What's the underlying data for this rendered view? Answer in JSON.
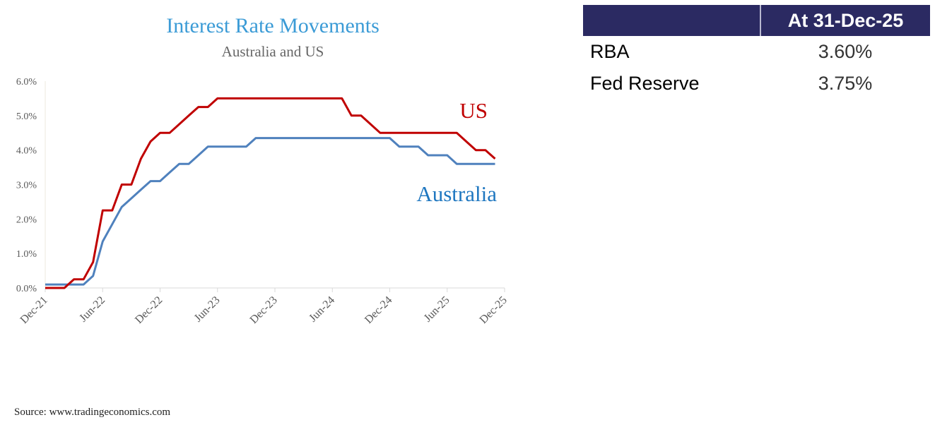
{
  "chart_data": {
    "type": "line",
    "title": "Interest Rate Movements",
    "subtitle": "Australia and US",
    "xlabel": "",
    "ylabel": "",
    "x": [
      "Dec-21",
      "Jan-22",
      "Feb-22",
      "Mar-22",
      "Apr-22",
      "May-22",
      "Jun-22",
      "Jul-22",
      "Aug-22",
      "Sep-22",
      "Oct-22",
      "Nov-22",
      "Dec-22",
      "Jan-23",
      "Feb-23",
      "Mar-23",
      "Apr-23",
      "May-23",
      "Jun-23",
      "Jul-23",
      "Aug-23",
      "Sep-23",
      "Oct-23",
      "Nov-23",
      "Dec-23",
      "Jan-24",
      "Feb-24",
      "Mar-24",
      "Apr-24",
      "May-24",
      "Jun-24",
      "Jul-24",
      "Aug-24",
      "Sep-24",
      "Oct-24",
      "Nov-24",
      "Dec-24",
      "Jan-25",
      "Feb-25",
      "Mar-25",
      "Apr-25",
      "May-25",
      "Jun-25",
      "Jul-25",
      "Aug-25",
      "Sep-25",
      "Oct-25",
      "Nov-25"
    ],
    "series": [
      {
        "name": "US",
        "color": "#c00000",
        "values": [
          0,
          0,
          0,
          0.25,
          0.25,
          0.75,
          2.25,
          2.25,
          3.0,
          3.0,
          3.75,
          4.25,
          4.5,
          4.5,
          4.75,
          5.0,
          5.25,
          5.25,
          5.5,
          5.5,
          5.5,
          5.5,
          5.5,
          5.5,
          5.5,
          5.5,
          5.5,
          5.5,
          5.5,
          5.5,
          5.5,
          5.5,
          5.0,
          5.0,
          4.75,
          4.5,
          4.5,
          4.5,
          4.5,
          4.5,
          4.5,
          4.5,
          4.5,
          4.5,
          4.25,
          4.0,
          4.0,
          3.75
        ]
      },
      {
        "name": "Australia",
        "color": "#4f81bd",
        "label_color": "#1f77c0",
        "values": [
          0.1,
          0.1,
          0.1,
          0.1,
          0.1,
          0.35,
          1.35,
          1.85,
          2.35,
          2.6,
          2.85,
          3.1,
          3.1,
          3.35,
          3.6,
          3.6,
          3.85,
          4.1,
          4.1,
          4.1,
          4.1,
          4.1,
          4.35,
          4.35,
          4.35,
          4.35,
          4.35,
          4.35,
          4.35,
          4.35,
          4.35,
          4.35,
          4.35,
          4.35,
          4.35,
          4.35,
          4.35,
          4.1,
          4.1,
          4.1,
          3.85,
          3.85,
          3.85,
          3.6,
          3.6,
          3.6,
          3.6,
          3.6
        ]
      }
    ],
    "x_tick_labels": [
      "Dec-21",
      "Jun-22",
      "Dec-22",
      "Jun-23",
      "Dec-23",
      "Jun-24",
      "Dec-24",
      "Jun-25",
      "Dec-25"
    ],
    "y_tick_labels": [
      "0.0%",
      "1.0%",
      "2.0%",
      "3.0%",
      "4.0%",
      "5.0%",
      "6.0%"
    ],
    "ylim": [
      0,
      6
    ],
    "grid": false,
    "legend": "inline labels at line ends"
  },
  "table": {
    "header": [
      "",
      "At 31-Dec-25"
    ],
    "header_color": "#2b2a62",
    "rows": [
      {
        "label": "RBA",
        "value": "3.60%"
      },
      {
        "label": "Fed Reserve",
        "value": "3.75%"
      }
    ]
  },
  "source": "Source: www.tradingeconomics.com"
}
